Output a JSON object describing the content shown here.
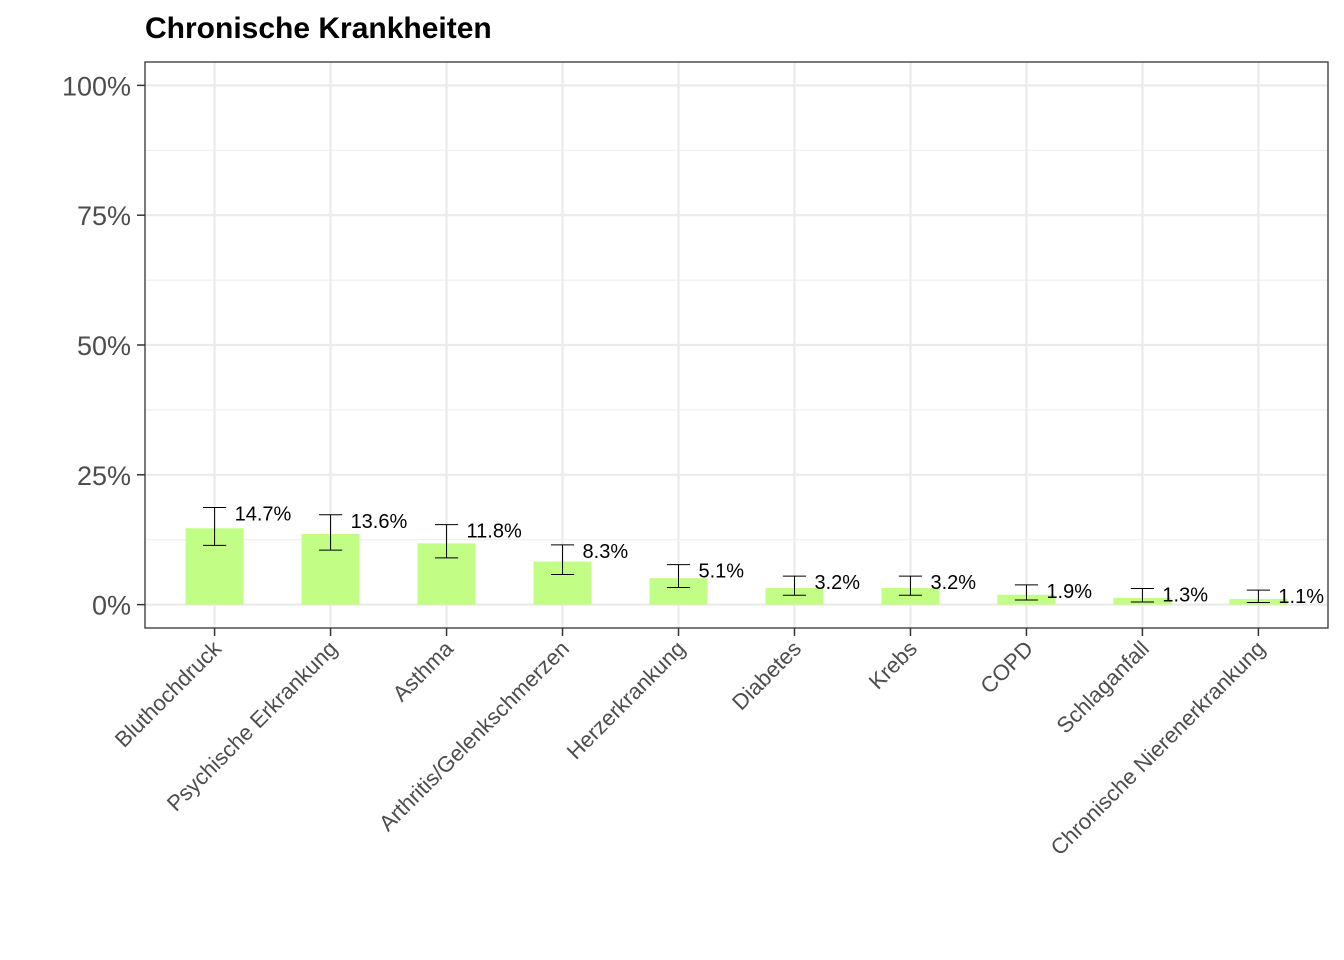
{
  "chart_data": {
    "type": "bar",
    "title": "Chronische Krankheiten",
    "xlabel": "",
    "ylabel": "",
    "ylim": [
      -0.045,
      1.045
    ],
    "y_ticks": [
      0,
      0.25,
      0.5,
      0.75,
      1.0
    ],
    "y_tick_labels": [
      "0%",
      "25%",
      "50%",
      "75%",
      "100%"
    ],
    "grid": true,
    "legend": "none",
    "bar_color": "#c2fd86",
    "categories": [
      "Bluthochdruck",
      "Psychische Erkrankung",
      "Asthma",
      "Arthritis/Gelenkschmerzen",
      "Herzerkrankung",
      "Diabetes",
      "Krebs",
      "COPD",
      "Schlaganfall",
      "Chronische Nierenerkrankung"
    ],
    "values": [
      0.147,
      0.136,
      0.118,
      0.083,
      0.051,
      0.032,
      0.032,
      0.019,
      0.013,
      0.011
    ],
    "lower": [
      0.114,
      0.105,
      0.09,
      0.058,
      0.033,
      0.018,
      0.018,
      0.009,
      0.005,
      0.004
    ],
    "upper": [
      0.187,
      0.173,
      0.154,
      0.115,
      0.077,
      0.055,
      0.055,
      0.038,
      0.031,
      0.028
    ],
    "data_labels": [
      "14.7%",
      "13.6%",
      "11.8%",
      "8.3%",
      "5.1%",
      "3.2%",
      "3.2%",
      "1.9%",
      "1.3%",
      "1.1%"
    ]
  }
}
